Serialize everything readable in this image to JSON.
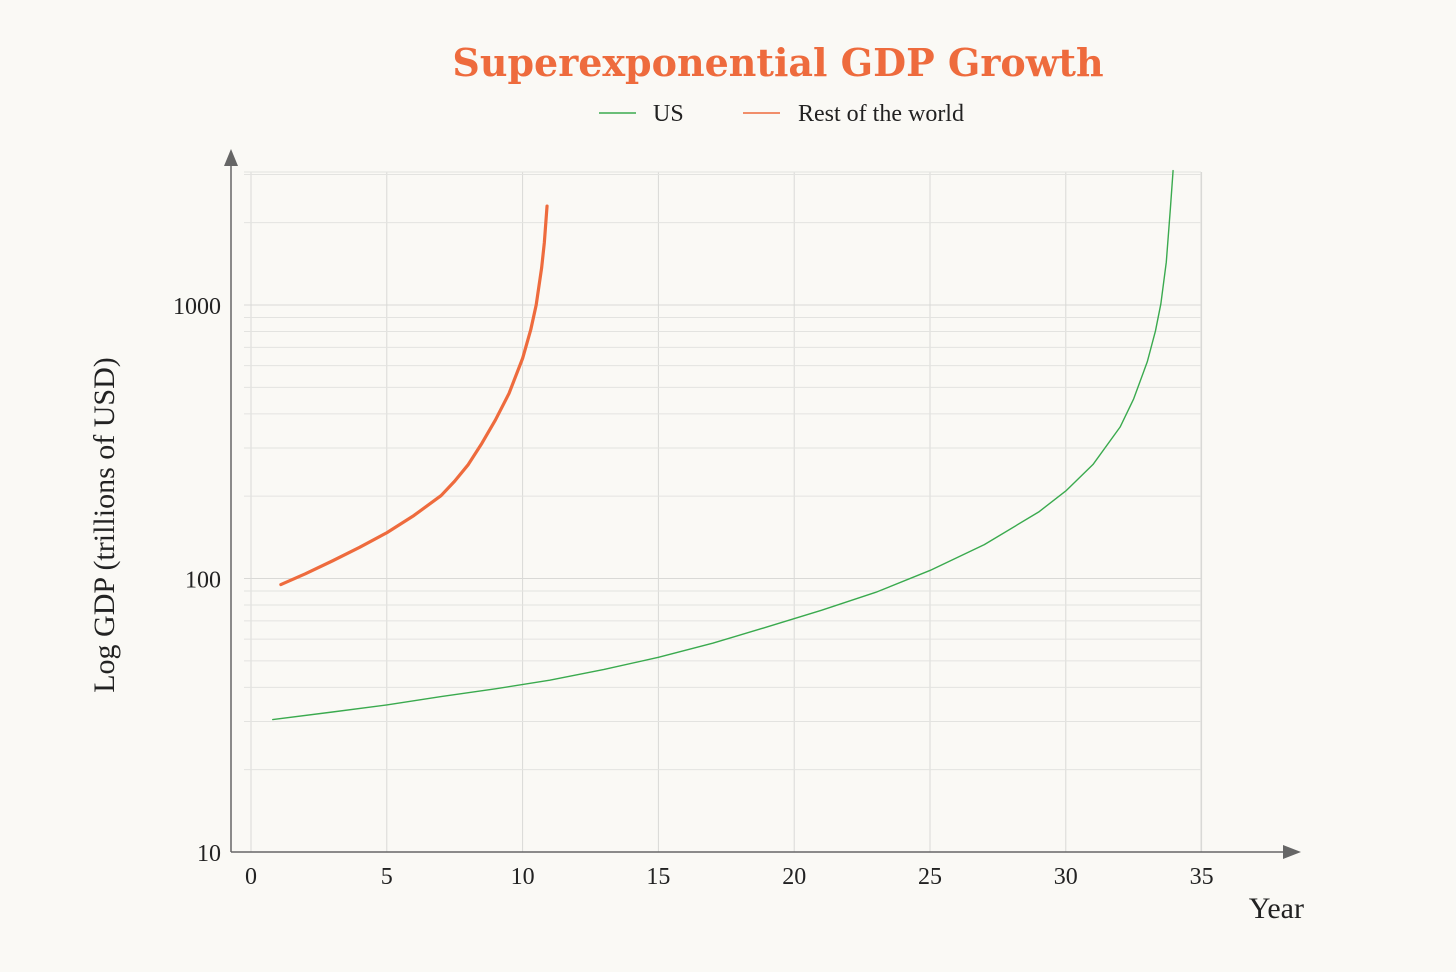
{
  "chart_data": {
    "type": "line",
    "title": "Superexponential GDP Growth",
    "xlabel": "Year",
    "ylabel": "Log GDP (trillions of USD)",
    "xlim": [
      -0.7,
      38.5
    ],
    "ylim": [
      10,
      3000
    ],
    "y_scale": "log",
    "x_ticks": [
      0,
      5,
      10,
      15,
      20,
      25,
      30,
      35
    ],
    "x_tick_labels": [
      "0",
      "5",
      "10",
      "15",
      "20",
      "25",
      "30",
      "35"
    ],
    "y_ticks": [
      10,
      100,
      1000
    ],
    "y_tick_labels": [
      "10",
      "100",
      "1000"
    ],
    "grid": true,
    "legend_position": "top-center",
    "title_color": "#EE6B3D",
    "series": [
      {
        "name": "US",
        "color": "#3AAA4E",
        "points": [
          [
            0.8,
            30.5
          ],
          [
            3,
            32.5
          ],
          [
            5,
            34.5
          ],
          [
            7,
            37
          ],
          [
            9,
            39.5
          ],
          [
            11,
            42.5
          ],
          [
            13,
            46.5
          ],
          [
            15,
            51.5
          ],
          [
            17,
            58
          ],
          [
            19,
            66.5
          ],
          [
            21,
            76.5
          ],
          [
            23,
            89
          ],
          [
            25,
            107
          ],
          [
            27,
            133
          ],
          [
            29,
            175
          ],
          [
            30,
            209
          ],
          [
            31,
            261
          ],
          [
            32,
            358
          ],
          [
            32.5,
            454
          ],
          [
            33,
            620
          ],
          [
            33.3,
            803
          ],
          [
            33.5,
            1010
          ],
          [
            33.7,
            1435
          ],
          [
            33.85,
            2250
          ],
          [
            33.95,
            3100
          ]
        ]
      },
      {
        "name": "Rest of the world",
        "color": "#EE6B3D",
        "points": [
          [
            1.1,
            95
          ],
          [
            2,
            104
          ],
          [
            3,
            116
          ],
          [
            4,
            130
          ],
          [
            5,
            147
          ],
          [
            6,
            170
          ],
          [
            7,
            201
          ],
          [
            7.5,
            227
          ],
          [
            8,
            261
          ],
          [
            8.5,
            312
          ],
          [
            9,
            380
          ],
          [
            9.5,
            475
          ],
          [
            10,
            638
          ],
          [
            10.3,
            812
          ],
          [
            10.5,
            1000
          ],
          [
            10.7,
            1365
          ],
          [
            10.8,
            1690
          ],
          [
            10.9,
            2300
          ]
        ]
      }
    ]
  }
}
